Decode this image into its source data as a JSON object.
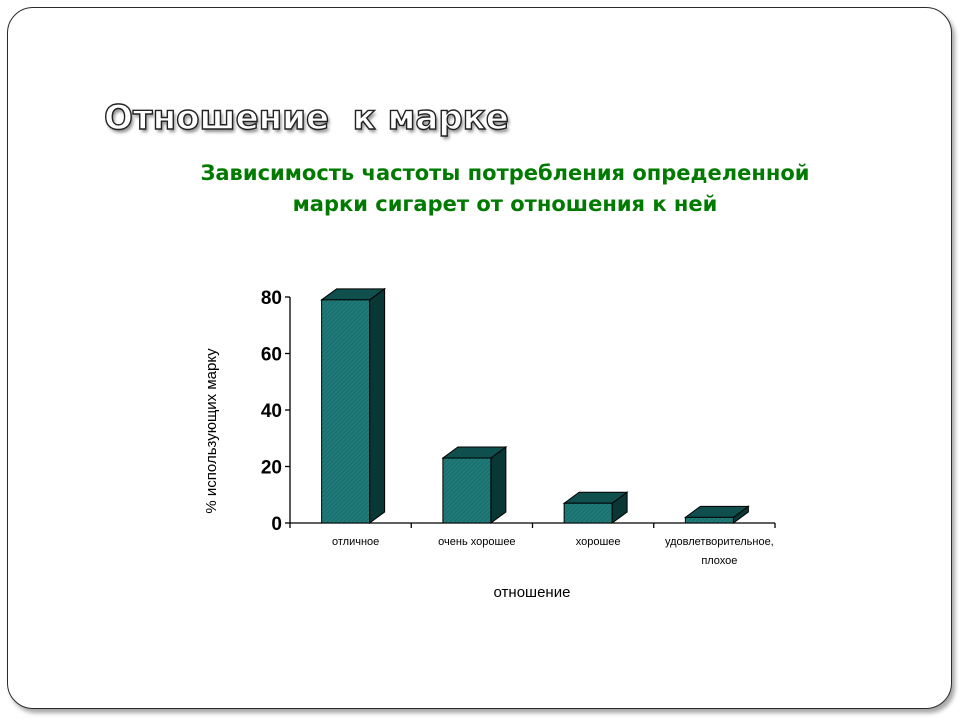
{
  "slide": {
    "title": "Отношение  к марке",
    "subtitle_line1": "Зависимость частоты потребления определенной",
    "subtitle_line2": "марки сигарет от отношения к ней"
  },
  "colors": {
    "bar_front": "#1f7a78",
    "bar_top": "#0f4f4e",
    "bar_side": "#083736",
    "subtitle": "#007a00",
    "axis": "#000000"
  },
  "chart_data": {
    "type": "bar",
    "style": "3d-column",
    "xlabel": "отношение",
    "ylabel": "% использующих марку",
    "ylim": [
      0,
      80
    ],
    "yticks": [
      0,
      20,
      40,
      60,
      80
    ],
    "categories": [
      [
        "отличное"
      ],
      [
        "очень хорошее"
      ],
      [
        "хорошее"
      ],
      [
        "удовлетворительное,",
        "плохое"
      ]
    ],
    "values": [
      79,
      23,
      7,
      2
    ],
    "grid": false,
    "legend": "none"
  }
}
